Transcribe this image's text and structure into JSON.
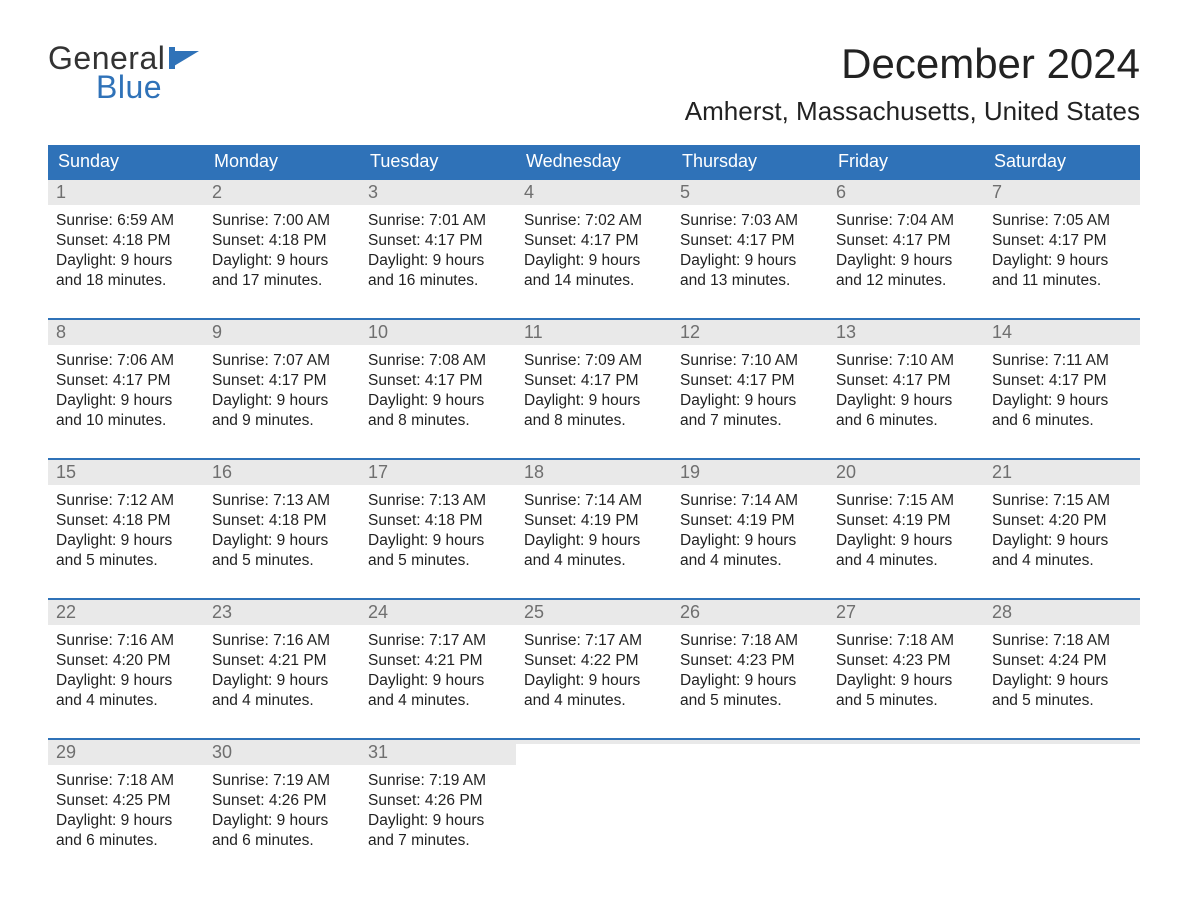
{
  "logo": {
    "text_general": "General",
    "text_blue": "Blue",
    "general_color": "#333333",
    "blue_color": "#2f72b8",
    "flag_color": "#2f72b8"
  },
  "header": {
    "month_title": "December 2024",
    "location": "Amherst, Massachusetts, United States",
    "title_fontsize": 42,
    "location_fontsize": 26,
    "title_color": "#222222"
  },
  "calendar": {
    "type": "table",
    "header_bg": "#2f72b8",
    "header_text_color": "#ffffff",
    "week_divider_color": "#2f72b8",
    "daynum_bg": "#e9e9e9",
    "daynum_color": "#6f6f6f",
    "body_text_color": "#222222",
    "background_color": "#ffffff",
    "columns": [
      "Sunday",
      "Monday",
      "Tuesday",
      "Wednesday",
      "Thursday",
      "Friday",
      "Saturday"
    ],
    "label_sunrise_prefix": "Sunrise: ",
    "label_sunset_prefix": "Sunset: ",
    "label_daylight_prefix": "Daylight: ",
    "weeks": [
      [
        {
          "n": "1",
          "sunrise": "6:59 AM",
          "sunset": "4:18 PM",
          "daylight1": "9 hours",
          "daylight2": "and 18 minutes."
        },
        {
          "n": "2",
          "sunrise": "7:00 AM",
          "sunset": "4:18 PM",
          "daylight1": "9 hours",
          "daylight2": "and 17 minutes."
        },
        {
          "n": "3",
          "sunrise": "7:01 AM",
          "sunset": "4:17 PM",
          "daylight1": "9 hours",
          "daylight2": "and 16 minutes."
        },
        {
          "n": "4",
          "sunrise": "7:02 AM",
          "sunset": "4:17 PM",
          "daylight1": "9 hours",
          "daylight2": "and 14 minutes."
        },
        {
          "n": "5",
          "sunrise": "7:03 AM",
          "sunset": "4:17 PM",
          "daylight1": "9 hours",
          "daylight2": "and 13 minutes."
        },
        {
          "n": "6",
          "sunrise": "7:04 AM",
          "sunset": "4:17 PM",
          "daylight1": "9 hours",
          "daylight2": "and 12 minutes."
        },
        {
          "n": "7",
          "sunrise": "7:05 AM",
          "sunset": "4:17 PM",
          "daylight1": "9 hours",
          "daylight2": "and 11 minutes."
        }
      ],
      [
        {
          "n": "8",
          "sunrise": "7:06 AM",
          "sunset": "4:17 PM",
          "daylight1": "9 hours",
          "daylight2": "and 10 minutes."
        },
        {
          "n": "9",
          "sunrise": "7:07 AM",
          "sunset": "4:17 PM",
          "daylight1": "9 hours",
          "daylight2": "and 9 minutes."
        },
        {
          "n": "10",
          "sunrise": "7:08 AM",
          "sunset": "4:17 PM",
          "daylight1": "9 hours",
          "daylight2": "and 8 minutes."
        },
        {
          "n": "11",
          "sunrise": "7:09 AM",
          "sunset": "4:17 PM",
          "daylight1": "9 hours",
          "daylight2": "and 8 minutes."
        },
        {
          "n": "12",
          "sunrise": "7:10 AM",
          "sunset": "4:17 PM",
          "daylight1": "9 hours",
          "daylight2": "and 7 minutes."
        },
        {
          "n": "13",
          "sunrise": "7:10 AM",
          "sunset": "4:17 PM",
          "daylight1": "9 hours",
          "daylight2": "and 6 minutes."
        },
        {
          "n": "14",
          "sunrise": "7:11 AM",
          "sunset": "4:17 PM",
          "daylight1": "9 hours",
          "daylight2": "and 6 minutes."
        }
      ],
      [
        {
          "n": "15",
          "sunrise": "7:12 AM",
          "sunset": "4:18 PM",
          "daylight1": "9 hours",
          "daylight2": "and 5 minutes."
        },
        {
          "n": "16",
          "sunrise": "7:13 AM",
          "sunset": "4:18 PM",
          "daylight1": "9 hours",
          "daylight2": "and 5 minutes."
        },
        {
          "n": "17",
          "sunrise": "7:13 AM",
          "sunset": "4:18 PM",
          "daylight1": "9 hours",
          "daylight2": "and 5 minutes."
        },
        {
          "n": "18",
          "sunrise": "7:14 AM",
          "sunset": "4:19 PM",
          "daylight1": "9 hours",
          "daylight2": "and 4 minutes."
        },
        {
          "n": "19",
          "sunrise": "7:14 AM",
          "sunset": "4:19 PM",
          "daylight1": "9 hours",
          "daylight2": "and 4 minutes."
        },
        {
          "n": "20",
          "sunrise": "7:15 AM",
          "sunset": "4:19 PM",
          "daylight1": "9 hours",
          "daylight2": "and 4 minutes."
        },
        {
          "n": "21",
          "sunrise": "7:15 AM",
          "sunset": "4:20 PM",
          "daylight1": "9 hours",
          "daylight2": "and 4 minutes."
        }
      ],
      [
        {
          "n": "22",
          "sunrise": "7:16 AM",
          "sunset": "4:20 PM",
          "daylight1": "9 hours",
          "daylight2": "and 4 minutes."
        },
        {
          "n": "23",
          "sunrise": "7:16 AM",
          "sunset": "4:21 PM",
          "daylight1": "9 hours",
          "daylight2": "and 4 minutes."
        },
        {
          "n": "24",
          "sunrise": "7:17 AM",
          "sunset": "4:21 PM",
          "daylight1": "9 hours",
          "daylight2": "and 4 minutes."
        },
        {
          "n": "25",
          "sunrise": "7:17 AM",
          "sunset": "4:22 PM",
          "daylight1": "9 hours",
          "daylight2": "and 4 minutes."
        },
        {
          "n": "26",
          "sunrise": "7:18 AM",
          "sunset": "4:23 PM",
          "daylight1": "9 hours",
          "daylight2": "and 5 minutes."
        },
        {
          "n": "27",
          "sunrise": "7:18 AM",
          "sunset": "4:23 PM",
          "daylight1": "9 hours",
          "daylight2": "and 5 minutes."
        },
        {
          "n": "28",
          "sunrise": "7:18 AM",
          "sunset": "4:24 PM",
          "daylight1": "9 hours",
          "daylight2": "and 5 minutes."
        }
      ],
      [
        {
          "n": "29",
          "sunrise": "7:18 AM",
          "sunset": "4:25 PM",
          "daylight1": "9 hours",
          "daylight2": "and 6 minutes."
        },
        {
          "n": "30",
          "sunrise": "7:19 AM",
          "sunset": "4:26 PM",
          "daylight1": "9 hours",
          "daylight2": "and 6 minutes."
        },
        {
          "n": "31",
          "sunrise": "7:19 AM",
          "sunset": "4:26 PM",
          "daylight1": "9 hours",
          "daylight2": "and 7 minutes."
        },
        {
          "empty": true
        },
        {
          "empty": true
        },
        {
          "empty": true
        },
        {
          "empty": true
        }
      ]
    ]
  }
}
